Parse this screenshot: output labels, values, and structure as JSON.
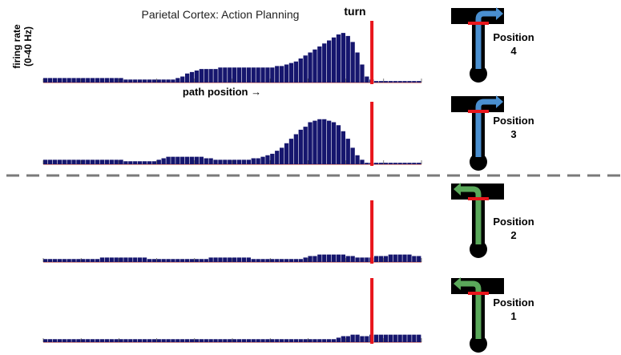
{
  "title": "Parietal Cortex: Action Planning",
  "ylabel_line1": "firing rate",
  "ylabel_line2": "(0-40 Hz)",
  "xlabel": "path position →",
  "marker_label": "turn",
  "colors": {
    "bars": "#16166e",
    "turn_marker": "#e8161c",
    "baseline": "#c0392b",
    "right_turn_arrow": "#4a8fd0",
    "left_turn_arrow": "#5aa85a",
    "maze": "#000000",
    "divider": "#7a7a7a"
  },
  "positions": [
    {
      "label": "Position",
      "number": "4",
      "turn": "right"
    },
    {
      "label": "Position",
      "number": "3",
      "turn": "right"
    },
    {
      "label": "Position",
      "number": "2",
      "turn": "left"
    },
    {
      "label": "Position",
      "number": "1",
      "turn": "left"
    }
  ],
  "chart_data": {
    "type": "bar",
    "ylim": [
      0,
      40
    ],
    "xlabel": "path position →",
    "ylabel": "firing rate (0-40 Hz)",
    "marker": {
      "label": "turn",
      "bin": 69
    },
    "n_bins": 80,
    "series": [
      {
        "name": "Position 4",
        "values": [
          3,
          3,
          3,
          3,
          3,
          3,
          3,
          3,
          3,
          3,
          3,
          3,
          3,
          3,
          3,
          3,
          3,
          2,
          2,
          2,
          2,
          2,
          2,
          2,
          2,
          2,
          2,
          2,
          3,
          4,
          6,
          7,
          8,
          9,
          9,
          9,
          9,
          10,
          10,
          10,
          10,
          10,
          10,
          10,
          10,
          10,
          10,
          10,
          10,
          11,
          11,
          12,
          13,
          14,
          16,
          18,
          20,
          22,
          24,
          26,
          28,
          30,
          32,
          33,
          31,
          27,
          20,
          12,
          4,
          2,
          1,
          1,
          1,
          1,
          1,
          1,
          1,
          1,
          1,
          1
        ]
      },
      {
        "name": "Position 3",
        "values": [
          3,
          3,
          3,
          3,
          3,
          3,
          3,
          3,
          3,
          3,
          3,
          3,
          3,
          3,
          3,
          3,
          3,
          2,
          2,
          2,
          2,
          2,
          2,
          2,
          3,
          4,
          5,
          5,
          5,
          5,
          5,
          5,
          5,
          5,
          4,
          4,
          3,
          3,
          3,
          3,
          3,
          3,
          3,
          3,
          4,
          4,
          5,
          6,
          7,
          9,
          11,
          14,
          17,
          20,
          23,
          25,
          28,
          29,
          30,
          30,
          29,
          28,
          26,
          22,
          17,
          11,
          6,
          3,
          1,
          1,
          1,
          1,
          1,
          1,
          1,
          1,
          1,
          1,
          1,
          1
        ]
      },
      {
        "name": "Position 2",
        "values": [
          2,
          2,
          2,
          2,
          2,
          2,
          2,
          2,
          2,
          2,
          2,
          2,
          3,
          3,
          3,
          3,
          3,
          3,
          3,
          3,
          3,
          3,
          2,
          2,
          2,
          2,
          2,
          2,
          2,
          2,
          2,
          2,
          2,
          2,
          2,
          3,
          3,
          3,
          3,
          3,
          3,
          3,
          3,
          3,
          2,
          2,
          2,
          2,
          2,
          2,
          2,
          2,
          2,
          2,
          2,
          3,
          4,
          4,
          5,
          5,
          5,
          5,
          5,
          5,
          4,
          4,
          3,
          3,
          3,
          3,
          4,
          4,
          4,
          5,
          5,
          5,
          5,
          5,
          4,
          4
        ]
      },
      {
        "name": "Position 1",
        "values": [
          2,
          2,
          2,
          2,
          2,
          2,
          2,
          2,
          2,
          2,
          2,
          2,
          2,
          2,
          2,
          2,
          2,
          2,
          2,
          2,
          2,
          2,
          2,
          2,
          2,
          2,
          2,
          2,
          2,
          2,
          2,
          2,
          2,
          2,
          2,
          2,
          2,
          2,
          2,
          2,
          2,
          2,
          2,
          2,
          2,
          2,
          2,
          2,
          2,
          2,
          2,
          2,
          2,
          2,
          2,
          2,
          2,
          2,
          2,
          2,
          2,
          2,
          3,
          4,
          4,
          5,
          5,
          4,
          4,
          5,
          5,
          5,
          5,
          5,
          5,
          5,
          5,
          5,
          5,
          5
        ]
      }
    ]
  }
}
